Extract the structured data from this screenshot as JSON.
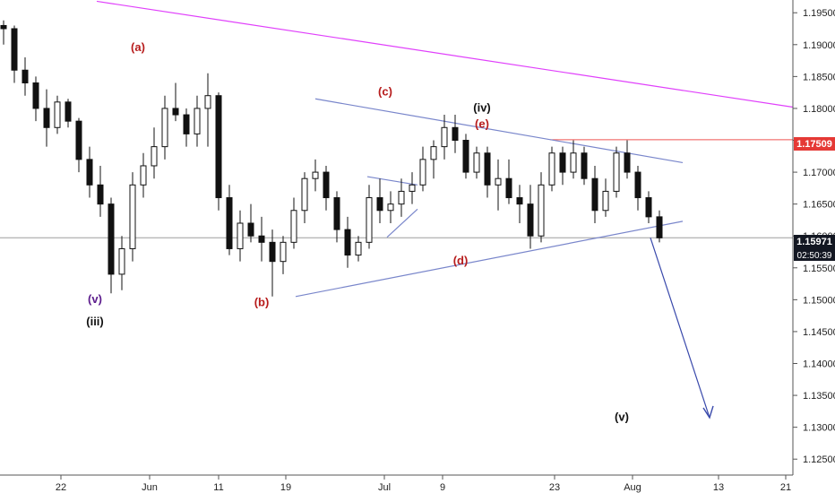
{
  "chart_data": {
    "type": "candlestick",
    "title": "",
    "xlabel": "",
    "ylabel": "",
    "ylim": [
      1.1225,
      1.197
    ],
    "y_ticks": [
      "1.12500",
      "1.13000",
      "1.13500",
      "1.14000",
      "1.14500",
      "1.15000",
      "1.15500",
      "1.16000",
      "1.16500",
      "1.17000",
      "1.17500",
      "1.18000",
      "1.18500",
      "1.19000",
      "1.19500"
    ],
    "x_ticks": [
      "22",
      "Jun",
      "11",
      "19",
      "Jul",
      "9",
      "23",
      "Aug",
      "13",
      "21"
    ],
    "price_label": "1.15971",
    "countdown_label": "02:50:39",
    "level_label": "1.17509",
    "price_level": 1.15971,
    "resistance_level": 1.17509,
    "wave_labels": [
      {
        "text": "(a)",
        "color": "#b71c1c",
        "x": 12.5,
        "y": 1.189
      },
      {
        "text": "(b)",
        "color": "#b71c1c",
        "x": 24.0,
        "y": 1.149
      },
      {
        "text": "(c)",
        "color": "#b71c1c",
        "x": 35.5,
        "y": 1.182
      },
      {
        "text": "(d)",
        "color": "#b71c1c",
        "x": 42.5,
        "y": 1.1555
      },
      {
        "text": "(e)",
        "color": "#b71c1c",
        "x": 44.5,
        "y": 1.177
      },
      {
        "text": "(iv)",
        "color": "#111111",
        "x": 44.5,
        "y": 1.1795
      },
      {
        "text": "(v)",
        "color": "#5b1b8c",
        "x": 8.5,
        "y": 1.1495
      },
      {
        "text": "(iii)",
        "color": "#111111",
        "x": 8.5,
        "y": 1.146
      },
      {
        "text": "(v)",
        "color": "#111111",
        "x": 57.5,
        "y": 1.131
      }
    ],
    "candles": [
      [
        1.193,
        1.1938,
        1.19,
        1.1925
      ],
      [
        1.1925,
        1.193,
        1.184,
        1.186
      ],
      [
        1.186,
        1.188,
        1.182,
        1.184
      ],
      [
        1.184,
        1.185,
        1.178,
        1.18
      ],
      [
        1.18,
        1.183,
        1.174,
        1.177
      ],
      [
        1.177,
        1.182,
        1.176,
        1.181
      ],
      [
        1.181,
        1.1815,
        1.177,
        1.178
      ],
      [
        1.178,
        1.1785,
        1.17,
        1.172
      ],
      [
        1.172,
        1.174,
        1.166,
        1.168
      ],
      [
        1.168,
        1.171,
        1.163,
        1.165
      ],
      [
        1.165,
        1.166,
        1.151,
        1.154
      ],
      [
        1.154,
        1.16,
        1.1515,
        1.158
      ],
      [
        1.158,
        1.17,
        1.156,
        1.168
      ],
      [
        1.168,
        1.173,
        1.166,
        1.171
      ],
      [
        1.171,
        1.177,
        1.169,
        1.174
      ],
      [
        1.174,
        1.182,
        1.172,
        1.18
      ],
      [
        1.18,
        1.184,
        1.178,
        1.179
      ],
      [
        1.179,
        1.18,
        1.174,
        1.176
      ],
      [
        1.176,
        1.182,
        1.174,
        1.18
      ],
      [
        1.18,
        1.1855,
        1.174,
        1.182
      ],
      [
        1.182,
        1.1825,
        1.164,
        1.166
      ],
      [
        1.166,
        1.168,
        1.157,
        1.158
      ],
      [
        1.158,
        1.164,
        1.156,
        1.162
      ],
      [
        1.162,
        1.165,
        1.159,
        1.16
      ],
      [
        1.16,
        1.163,
        1.156,
        1.159
      ],
      [
        1.159,
        1.161,
        1.1505,
        1.156
      ],
      [
        1.156,
        1.16,
        1.154,
        1.159
      ],
      [
        1.159,
        1.166,
        1.158,
        1.164
      ],
      [
        1.164,
        1.17,
        1.162,
        1.169
      ],
      [
        1.169,
        1.172,
        1.167,
        1.17
      ],
      [
        1.17,
        1.171,
        1.164,
        1.166
      ],
      [
        1.166,
        1.167,
        1.159,
        1.161
      ],
      [
        1.161,
        1.163,
        1.155,
        1.157
      ],
      [
        1.157,
        1.16,
        1.156,
        1.159
      ],
      [
        1.159,
        1.168,
        1.158,
        1.166
      ],
      [
        1.166,
        1.169,
        1.162,
        1.164
      ],
      [
        1.164,
        1.167,
        1.162,
        1.165
      ],
      [
        1.165,
        1.169,
        1.163,
        1.167
      ],
      [
        1.167,
        1.17,
        1.165,
        1.168
      ],
      [
        1.168,
        1.174,
        1.167,
        1.172
      ],
      [
        1.172,
        1.175,
        1.169,
        1.174
      ],
      [
        1.174,
        1.179,
        1.172,
        1.177
      ],
      [
        1.177,
        1.179,
        1.173,
        1.175
      ],
      [
        1.175,
        1.176,
        1.169,
        1.17
      ],
      [
        1.17,
        1.174,
        1.169,
        1.173
      ],
      [
        1.173,
        1.174,
        1.166,
        1.168
      ],
      [
        1.168,
        1.172,
        1.164,
        1.169
      ],
      [
        1.169,
        1.172,
        1.165,
        1.166
      ],
      [
        1.166,
        1.168,
        1.162,
        1.165
      ],
      [
        1.165,
        1.168,
        1.158,
        1.16
      ],
      [
        1.16,
        1.17,
        1.159,
        1.168
      ],
      [
        1.168,
        1.174,
        1.167,
        1.173
      ],
      [
        1.173,
        1.174,
        1.168,
        1.17
      ],
      [
        1.17,
        1.175,
        1.169,
        1.173
      ],
      [
        1.173,
        1.174,
        1.168,
        1.169
      ],
      [
        1.169,
        1.171,
        1.162,
        1.164
      ],
      [
        1.164,
        1.169,
        1.163,
        1.167
      ],
      [
        1.167,
        1.174,
        1.166,
        1.173
      ],
      [
        1.173,
        1.175,
        1.169,
        1.17
      ],
      [
        1.17,
        1.171,
        1.164,
        1.166
      ],
      [
        1.166,
        1.167,
        1.162,
        1.163
      ],
      [
        1.163,
        1.164,
        1.159,
        1.1597
      ]
    ]
  }
}
